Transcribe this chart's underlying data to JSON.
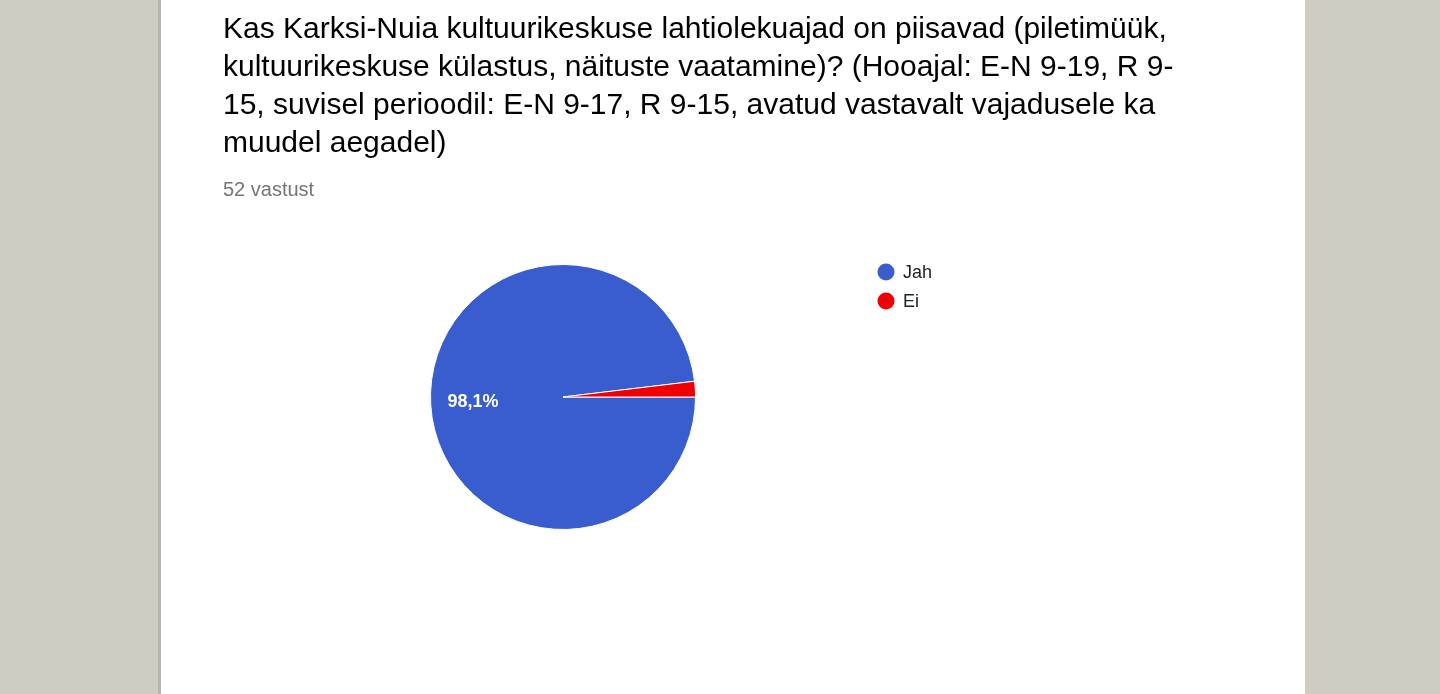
{
  "chart_data": {
    "type": "pie",
    "title": "Kas Karksi-Nuia kultuurikeskuse lahtiolekuajad on piisavad (piletimüük, kultuurikeskuse külastus, näituste vaatamine)? (Hooajal: E-N 9-19, R 9-15, suvisel perioodil: E-N 9-17, R 9-15, avatud vastavalt vajadusele ka muudel aegadel)",
    "subtitle": "52 vastust",
    "categories": [
      "Jah",
      "Ei"
    ],
    "values": [
      98.1,
      1.9
    ],
    "colors": [
      "#395ccf",
      "#f00000"
    ],
    "value_labels": [
      "98,1%",
      null
    ],
    "legend": "top right"
  }
}
